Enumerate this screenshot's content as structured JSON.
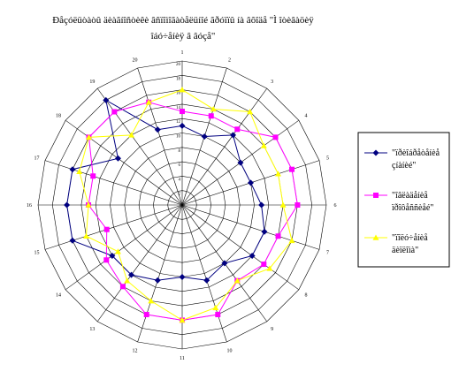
{
  "chart_data": {
    "type": "radar",
    "title": [
      "Ðåçóëüòàòû äèàãíîñòèêè âñïîìîãàòåëüíîé ãðóïïû íà âõîäå \"Ì îòèâàöèÿ",
      "îáó÷åíèÿ â âóçå\""
    ],
    "categories": [
      "1",
      "2",
      "3",
      "4",
      "5",
      "6",
      "7",
      "8",
      "9",
      "10",
      "11",
      "12",
      "13",
      "14",
      "15",
      "16",
      "17",
      "18",
      "19",
      "20"
    ],
    "rlim": [
      0,
      20
    ],
    "rticks": [
      0,
      2,
      4,
      6,
      8,
      10,
      12,
      14,
      16,
      18,
      20
    ],
    "grid": true,
    "legend": "right",
    "series": [
      {
        "name": [
          "\"ïðèîáðåòåíèå",
          "çíàíèé\""
        ],
        "color": "#000080",
        "marker": "diamond",
        "values": [
          11,
          10,
          12,
          10,
          10,
          11,
          12,
          12,
          10,
          11,
          10,
          11,
          12,
          12,
          16,
          16,
          16,
          11,
          18,
          11
        ]
      },
      {
        "name": [
          "\"îâëàäåíèå",
          "ïðîôåññèåé\""
        ],
        "color": "#ff00ff",
        "marker": "square",
        "values": [
          13,
          13,
          13,
          16,
          16,
          16,
          14,
          14,
          13,
          16,
          16,
          16,
          14,
          13,
          11,
          13,
          13,
          16,
          16,
          15
        ]
      },
      {
        "name": [
          "\"ïîëó÷åíèå",
          "äèïëîìà\""
        ],
        "color": "#ffff00",
        "marker": "triangle",
        "values": [
          16,
          14,
          16,
          14,
          14,
          14,
          16,
          15,
          13,
          15,
          16,
          14,
          13,
          11,
          14,
          13,
          15,
          16,
          12,
          15
        ]
      }
    ]
  }
}
